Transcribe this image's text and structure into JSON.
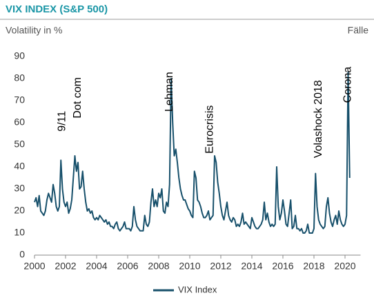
{
  "chart_data": {
    "type": "line",
    "title": "VIX INDEX (S&P 500)",
    "y_label": "Volatility in %",
    "right_label": "Fälle",
    "x": [
      2000,
      2000.1,
      2000.2,
      2000.3,
      2000.4,
      2000.5,
      2000.6,
      2000.7,
      2000.8,
      2000.9,
      2001,
      2001.1,
      2001.2,
      2001.3,
      2001.4,
      2001.5,
      2001.6,
      2001.7,
      2001.8,
      2001.9,
      2002,
      2002.1,
      2002.2,
      2002.3,
      2002.4,
      2002.5,
      2002.6,
      2002.7,
      2002.8,
      2002.9,
      2003,
      2003.1,
      2003.2,
      2003.3,
      2003.4,
      2003.5,
      2003.6,
      2003.7,
      2003.8,
      2003.9,
      2004,
      2004.1,
      2004.2,
      2004.3,
      2004.4,
      2004.5,
      2004.6,
      2004.7,
      2004.8,
      2004.9,
      2005,
      2005.1,
      2005.2,
      2005.3,
      2005.4,
      2005.5,
      2005.6,
      2005.7,
      2005.8,
      2005.9,
      2006,
      2006.1,
      2006.2,
      2006.3,
      2006.4,
      2006.5,
      2006.6,
      2006.7,
      2006.8,
      2006.9,
      2007,
      2007.1,
      2007.2,
      2007.3,
      2007.4,
      2007.5,
      2007.6,
      2007.7,
      2007.8,
      2007.9,
      2008,
      2008.1,
      2008.2,
      2008.3,
      2008.4,
      2008.5,
      2008.6,
      2008.7,
      2008.8,
      2008.9,
      2009,
      2009.1,
      2009.2,
      2009.3,
      2009.4,
      2009.5,
      2009.6,
      2009.7,
      2009.8,
      2009.9,
      2010,
      2010.1,
      2010.2,
      2010.3,
      2010.4,
      2010.5,
      2010.6,
      2010.7,
      2010.8,
      2010.9,
      2011,
      2011.1,
      2011.2,
      2011.3,
      2011.4,
      2011.5,
      2011.6,
      2011.7,
      2011.8,
      2011.9,
      2012,
      2012.1,
      2012.2,
      2012.3,
      2012.4,
      2012.5,
      2012.6,
      2012.7,
      2012.8,
      2012.9,
      2013,
      2013.1,
      2013.2,
      2013.3,
      2013.4,
      2013.5,
      2013.6,
      2013.7,
      2013.8,
      2013.9,
      2014,
      2014.1,
      2014.2,
      2014.3,
      2014.4,
      2014.5,
      2014.6,
      2014.7,
      2014.8,
      2014.9,
      2015,
      2015.1,
      2015.2,
      2015.3,
      2015.4,
      2015.5,
      2015.6,
      2015.7,
      2015.8,
      2015.9,
      2016,
      2016.1,
      2016.2,
      2016.3,
      2016.4,
      2016.5,
      2016.6,
      2016.7,
      2016.8,
      2016.9,
      2017,
      2017.1,
      2017.2,
      2017.3,
      2017.4,
      2017.5,
      2017.6,
      2017.7,
      2017.8,
      2017.9,
      2018,
      2018.1,
      2018.2,
      2018.3,
      2018.4,
      2018.5,
      2018.6,
      2018.7,
      2018.8,
      2018.9,
      2019,
      2019.1,
      2019.2,
      2019.3,
      2019.4,
      2019.5,
      2019.6,
      2019.7,
      2019.8,
      2019.9,
      2020,
      2020.1,
      2020.2,
      2020.3
    ],
    "series": [
      {
        "name": "VIX Index",
        "color": "#17506b",
        "values": [
          24,
          26,
          22,
          27,
          20,
          19,
          18,
          20,
          25,
          28,
          26,
          24,
          32,
          28,
          22,
          20,
          22,
          43,
          30,
          24,
          22,
          24,
          19,
          21,
          25,
          35,
          45,
          38,
          42,
          30,
          31,
          38,
          30,
          24,
          20,
          21,
          19,
          20,
          17,
          16,
          17,
          16,
          18,
          17,
          16,
          15,
          16,
          14,
          15,
          13,
          13,
          12,
          14,
          15,
          12,
          11,
          12,
          13,
          15,
          12,
          12,
          12,
          11,
          13,
          22,
          16,
          13,
          12,
          11,
          11,
          11,
          18,
          14,
          13,
          15,
          24,
          30,
          22,
          25,
          22,
          28,
          26,
          30,
          20,
          19,
          24,
          22,
          32,
          80,
          60,
          45,
          48,
          42,
          35,
          30,
          27,
          25,
          25,
          23,
          21,
          20,
          18,
          17,
          38,
          35,
          25,
          24,
          22,
          19,
          17,
          17,
          18,
          20,
          16,
          17,
          18,
          45,
          42,
          33,
          28,
          22,
          18,
          16,
          20,
          24,
          18,
          16,
          15,
          17,
          16,
          13,
          14,
          13,
          15,
          19,
          14,
          15,
          14,
          13,
          12,
          17,
          15,
          13,
          12,
          12,
          13,
          14,
          16,
          24,
          16,
          19,
          15,
          13,
          14,
          13,
          14,
          40,
          22,
          16,
          19,
          25,
          20,
          14,
          13,
          19,
          25,
          12,
          13,
          18,
          12,
          12,
          11,
          12,
          10,
          10,
          11,
          14,
          10,
          10,
          10,
          12,
          37,
          22,
          16,
          14,
          13,
          12,
          13,
          22,
          26,
          19,
          15,
          13,
          16,
          18,
          14,
          20,
          16,
          14,
          13,
          14,
          18,
          83,
          35
        ]
      }
    ],
    "xlim": [
      2000,
      2021
    ],
    "ylim": [
      0,
      90
    ],
    "xticks": [
      2000,
      2002,
      2004,
      2006,
      2008,
      2010,
      2012,
      2014,
      2016,
      2018,
      2020
    ],
    "yticks": [
      0,
      10,
      20,
      30,
      40,
      50,
      60,
      70,
      80,
      90
    ],
    "annotations": [
      {
        "text": "9/11",
        "x": 2001.8,
        "y": 56
      },
      {
        "text": "Dot com",
        "x": 2002.8,
        "y": 62
      },
      {
        "text": "Lehman",
        "x": 2008.7,
        "y": 65
      },
      {
        "text": "Eurocrisis",
        "x": 2011.3,
        "y": 46
      },
      {
        "text": "Volashock 2018",
        "x": 2018.3,
        "y": 44
      },
      {
        "text": "Corona",
        "x": 2020.2,
        "y": 69
      }
    ],
    "legend": "bottom"
  }
}
